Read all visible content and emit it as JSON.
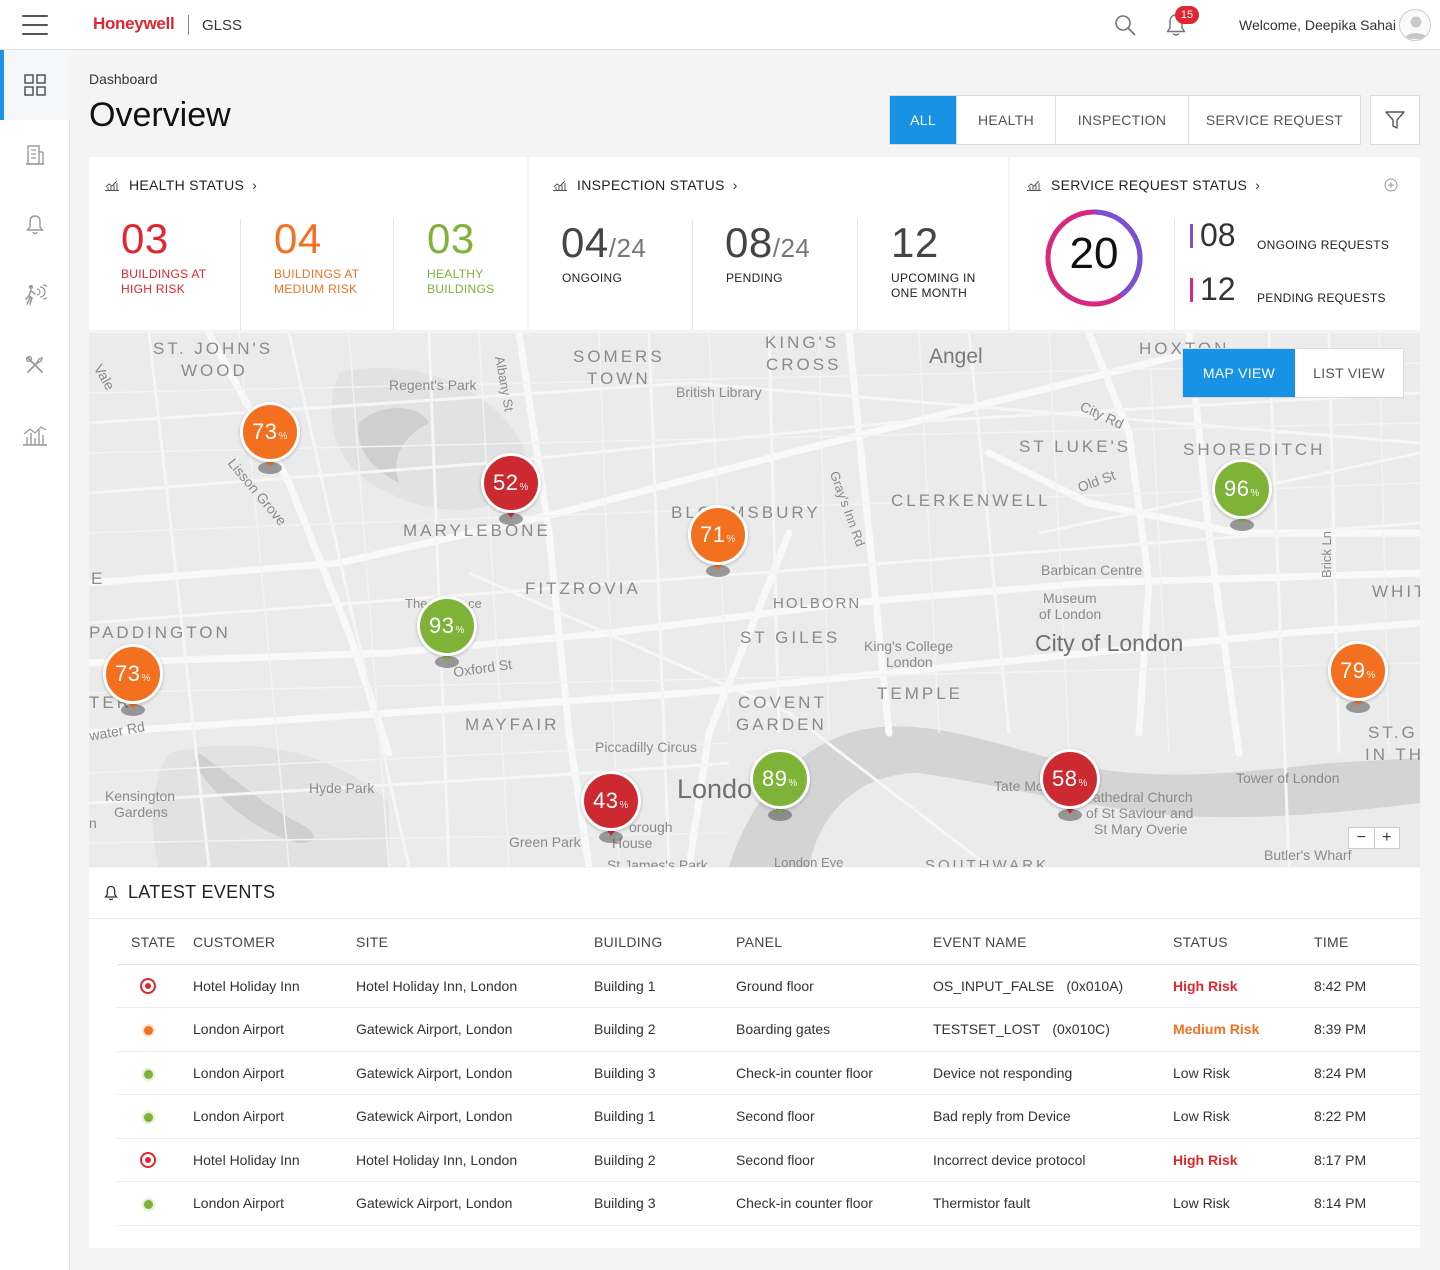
{
  "header": {
    "brand": "Honeywell",
    "app_name": "GLSS",
    "notification_count": "15",
    "welcome_text": "Welcome,  Deepika Sahai"
  },
  "sidebar": {
    "items": [
      {
        "icon": "dashboard-grid-icon",
        "active": true
      },
      {
        "icon": "building-icon",
        "active": false
      },
      {
        "icon": "alarm-bell-icon",
        "active": false
      },
      {
        "icon": "fire-evacuation-icon",
        "active": false
      },
      {
        "icon": "tools-icon",
        "active": false
      },
      {
        "icon": "analytics-chart-icon",
        "active": false
      }
    ]
  },
  "page": {
    "breadcrumb": "Dashboard",
    "title": "Overview",
    "tabs": [
      {
        "label": "ALL",
        "active": true
      },
      {
        "label": "HEALTH",
        "active": false
      },
      {
        "label": "INSPECTION",
        "active": false
      },
      {
        "label": "SERVICE REQUEST",
        "active": false
      }
    ]
  },
  "health_status": {
    "title": "HEALTH STATUS",
    "metrics": [
      {
        "value": "03",
        "label_1": "BUILDINGS AT",
        "label_2": "HIGH RISK",
        "color": "#e0262f"
      },
      {
        "value": "04",
        "label_1": "BUILDINGS AT",
        "label_2": "MEDIUM RISK",
        "color": "#f37021"
      },
      {
        "value": "03",
        "label_1": "HEALTHY",
        "label_2": "BUILDINGS",
        "color": "#7eb338"
      }
    ]
  },
  "inspection_status": {
    "title": "INSPECTION STATUS",
    "metrics": [
      {
        "value": "04",
        "total": "/24",
        "label_1": "ONGOING",
        "label_2": ""
      },
      {
        "value": "08",
        "total": "/24",
        "label_1": "PENDING",
        "label_2": ""
      },
      {
        "value": "12",
        "total": "",
        "label_1": "UPCOMING IN",
        "label_2": "ONE MONTH"
      }
    ]
  },
  "service_request_status": {
    "title": "SERVICE REQUEST STATUS",
    "total": "20",
    "ongoing": {
      "value": "08",
      "label": "ONGOING REQUESTS",
      "color": "#7b4fd6"
    },
    "pending": {
      "value": "12",
      "label": "PENDING REQUESTS",
      "color": "#d6287f"
    },
    "donut_fraction_ongoing": 0.4
  },
  "map": {
    "view_toggle": [
      {
        "label": "MAP VIEW",
        "active": true
      },
      {
        "label": "LIST VIEW",
        "active": false
      }
    ],
    "zoom_out": "−",
    "zoom_in": "+",
    "labels": [
      "ST. JOHN'S",
      "WOOD",
      "Vale",
      "Regent's Park",
      "Albany St",
      "SOMERS",
      "TOWN",
      "KING'S",
      "CROSS",
      "British Library",
      "Angel",
      "HOXTON",
      "City Rd",
      "ST LUKE'S",
      "SHOREDITCH",
      "Lisson Grove",
      "MARYLEBONE",
      "BLOOMSBURY",
      "Gray's Inn Rd",
      "Old St",
      "CLERKENWELL",
      "Brick Ln",
      "E",
      "FITZROVIA",
      "Barbican Centre",
      "Museum",
      "of London",
      "WHIT",
      "PADDINGTON",
      "The",
      "ce",
      "HOLBORN",
      "ST GILES",
      "King's College",
      "London",
      "City of London",
      "Oxford St",
      "TEMPLE",
      "TER",
      "water Rd",
      "MAYFAIR",
      "COVENT",
      "GARDEN",
      "ST.G",
      "IN TH",
      "Piccadilly Circus",
      "Tower of London",
      "Kensington",
      "Gardens",
      "Hyde Park",
      "Londo",
      "Tate Mo",
      "athedral Church",
      "of St Saviour and",
      "St Mary Overie",
      "orough",
      "House",
      "Green Park",
      "St James's Park",
      "London Eye",
      "SOUTHWARK",
      "Butler's Wharf",
      "n"
    ],
    "pins": [
      {
        "value": "73",
        "unit": "%",
        "level": "medium",
        "color": "#f37021"
      },
      {
        "value": "52",
        "unit": "%",
        "level": "high",
        "color": "#cc2a30"
      },
      {
        "value": "71",
        "unit": "%",
        "level": "medium",
        "color": "#f37021"
      },
      {
        "value": "96",
        "unit": "%",
        "level": "healthy",
        "color": "#7eb338"
      },
      {
        "value": "93",
        "unit": "%",
        "level": "healthy",
        "color": "#7eb338"
      },
      {
        "value": "73",
        "unit": "%",
        "level": "medium",
        "color": "#f37021"
      },
      {
        "value": "79",
        "unit": "%",
        "level": "medium",
        "color": "#f37021"
      },
      {
        "value": "43",
        "unit": "%",
        "level": "high",
        "color": "#cc2a30"
      },
      {
        "value": "89",
        "unit": "%",
        "level": "healthy",
        "color": "#7eb338"
      },
      {
        "value": "58",
        "unit": "%",
        "level": "high",
        "color": "#cc2a30"
      }
    ]
  },
  "events": {
    "title": "LATEST EVENTS",
    "columns": [
      "STATE",
      "CUSTOMER",
      "SITE",
      "BUILDING",
      "PANEL",
      "EVENT NAME",
      "STATUS",
      "TIME"
    ],
    "rows": [
      {
        "state": "high",
        "customer": "Hotel Holiday Inn",
        "site": "Hotel Holiday Inn, London",
        "building": "Building 1",
        "panel": "Ground floor",
        "event": "OS_INPUT_FALSE",
        "code": "(0x010A)",
        "status": "High Risk",
        "time": "8:42 PM"
      },
      {
        "state": "medium",
        "customer": "London Airport",
        "site": "Gatewick Airport, London",
        "building": "Building 2",
        "panel": "Boarding gates",
        "event": "TESTSET_LOST",
        "code": "(0x010C)",
        "status": "Medium Risk",
        "time": "8:39 PM"
      },
      {
        "state": "low",
        "customer": "London Airport",
        "site": "Gatewick Airport, London",
        "building": "Building 3",
        "panel": "Check-in counter floor",
        "event": "Device not responding",
        "code": "",
        "status": "Low Risk",
        "time": "8:24 PM"
      },
      {
        "state": "low",
        "customer": "London Airport",
        "site": "Gatewick Airport, London",
        "building": "Building 1",
        "panel": "Second floor",
        "event": "Bad reply from Device",
        "code": "",
        "status": "Low Risk",
        "time": "8:22 PM"
      },
      {
        "state": "high",
        "customer": "Hotel Holiday Inn",
        "site": "Hotel Holiday Inn, London",
        "building": "Building 2",
        "panel": "Second floor",
        "event": "Incorrect device protocol",
        "code": "",
        "status": "High Risk",
        "time": "8:17 PM"
      },
      {
        "state": "low",
        "customer": "London Airport",
        "site": "Gatewick Airport, London",
        "building": "Building 3",
        "panel": "Check-in counter floor",
        "event": "Thermistor fault",
        "code": "",
        "status": "Low Risk",
        "time": "8:14 PM"
      }
    ]
  },
  "colors": {
    "accent": "#1792e5",
    "brand": "#e0262f",
    "high_risk": "#e0262f",
    "medium_risk": "#f37021",
    "low_risk": "#7eb338"
  }
}
